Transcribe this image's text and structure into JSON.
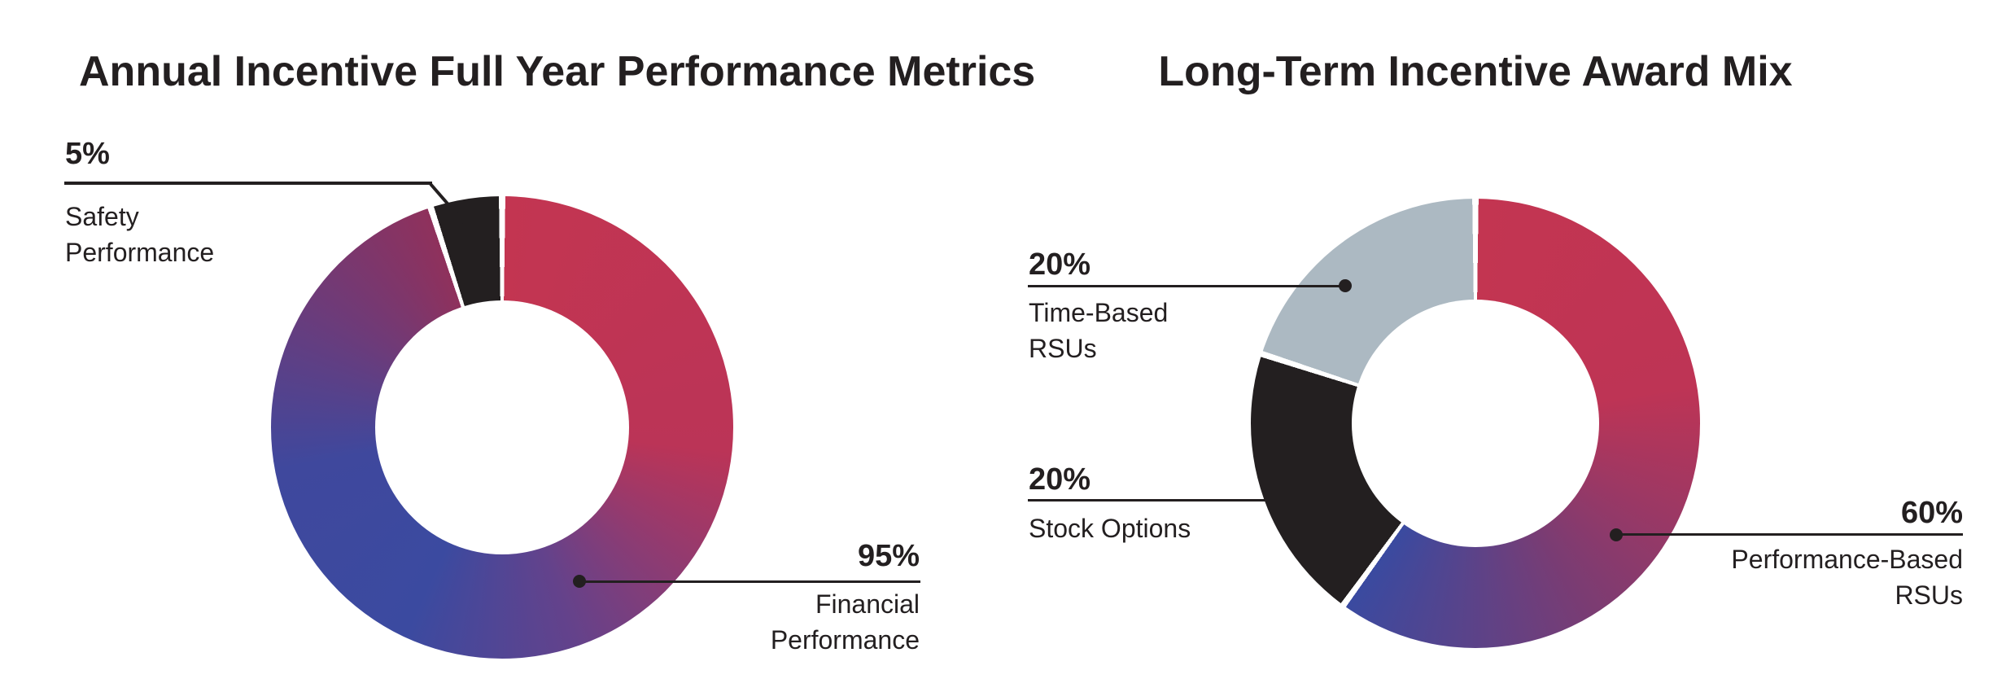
{
  "style": {
    "background": "#FFFFFF",
    "text_color": "#231F20",
    "leader_color": "#231F20",
    "slice_gap_color": "#FFFFFF",
    "red": "#C33551",
    "blue": "#3A4AA0",
    "black": "#231F20",
    "gray": "#ACB9C2"
  },
  "chart_data": [
    {
      "type": "pie",
      "variant": "donut",
      "title": "Annual Incentive Full Year Performance Metrics",
      "legend_position": "callouts",
      "categories": [
        "Financial Performance",
        "Safety Performance"
      ],
      "values": [
        95,
        5
      ],
      "slices": [
        {
          "name": "Financial Performance",
          "value": 95,
          "fill": {
            "type": "arc-gradient",
            "stops": [
              {
                "pos": 0,
                "color": "#C33551"
              },
              {
                "pos": 0.28,
                "color": "#BB3457"
              },
              {
                "pos": 0.47,
                "color": "#64428B"
              },
              {
                "pos": 0.6,
                "color": "#3B4AA0"
              },
              {
                "pos": 0.76,
                "color": "#3F489D"
              },
              {
                "pos": 0.89,
                "color": "#6D3B79"
              },
              {
                "pos": 1,
                "color": "#8F315C"
              }
            ]
          }
        },
        {
          "name": "Safety Performance",
          "value": 5,
          "fill": {
            "type": "solid",
            "color": "#231F20"
          }
        }
      ],
      "callouts": {
        "safety": {
          "pct": "5%",
          "line1": "Safety",
          "line2": "Performance"
        },
        "financial": {
          "pct": "95%",
          "line1": "Financial",
          "line2": "Performance"
        }
      }
    },
    {
      "type": "pie",
      "variant": "donut",
      "title": "Long-Term Incentive Award Mix",
      "legend_position": "callouts",
      "categories": [
        "Performance-Based RSUs",
        "Stock Options",
        "Time-Based RSUs"
      ],
      "values": [
        60,
        20,
        20
      ],
      "slices": [
        {
          "name": "Performance-Based RSUs",
          "value": 60,
          "fill": {
            "type": "arc-gradient",
            "stops": [
              {
                "pos": 0,
                "color": "#C33551"
              },
              {
                "pos": 0.37,
                "color": "#BE3455"
              },
              {
                "pos": 0.69,
                "color": "#7A3C73"
              },
              {
                "pos": 1,
                "color": "#3A4AA0"
              }
            ]
          }
        },
        {
          "name": "Stock Options",
          "value": 20,
          "fill": {
            "type": "solid",
            "color": "#231F20"
          }
        },
        {
          "name": "Time-Based RSUs",
          "value": 20,
          "fill": {
            "type": "solid",
            "color": "#ACB9C2"
          }
        }
      ],
      "callouts": {
        "time": {
          "pct": "20%",
          "line1": "Time-Based",
          "line2": "RSUs"
        },
        "stock": {
          "pct": "20%",
          "line1": "Stock Options"
        },
        "perf": {
          "pct": "60%",
          "line1": "Performance-Based",
          "line2": "RSUs"
        }
      }
    }
  ]
}
